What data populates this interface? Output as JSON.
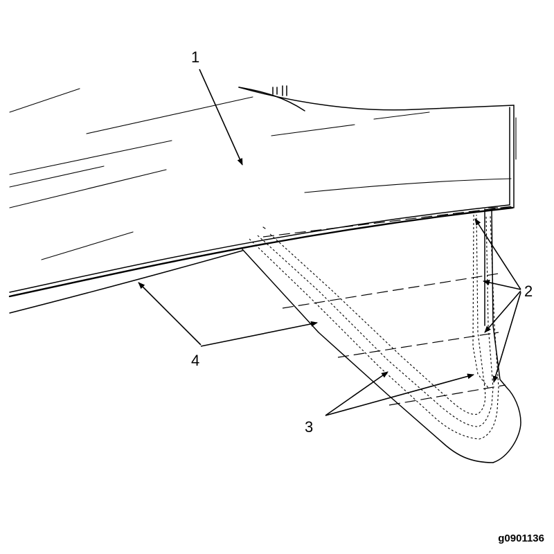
{
  "callouts": {
    "c1": "1",
    "c2": "2",
    "c3": "3",
    "c4": "4"
  },
  "figure_id": "g0901136"
}
